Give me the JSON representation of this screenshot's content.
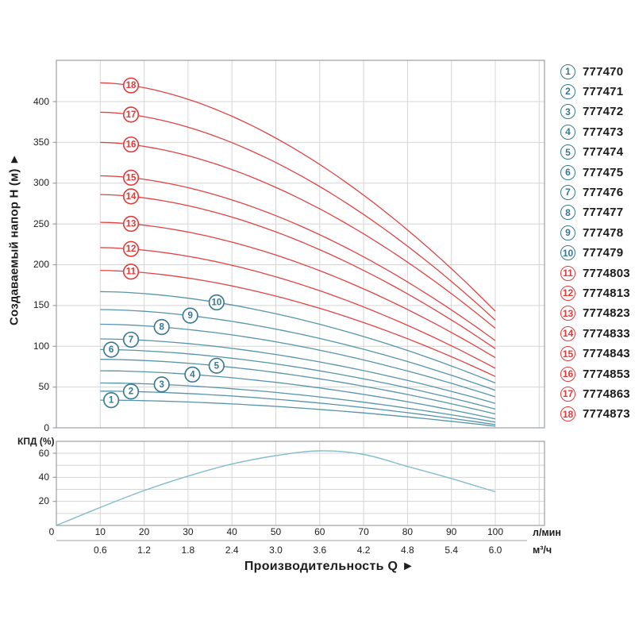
{
  "labels": {
    "y_title": "Создаваемый напор Н (м) ►",
    "x_title": "Производительность Q ►",
    "eff_label": "КПД (%)",
    "unit_lpm": "л/мин",
    "unit_m3h": "м³/ч"
  },
  "colors": {
    "red_curve": "#e04343",
    "red_label": "#e03a3a",
    "teal_curve": "#5694aa",
    "teal_label": "#35788f",
    "eff_curve": "#85bccb",
    "grid": "#d5d5d5",
    "border": "#9b9fa3",
    "text": "#1d1d1d"
  },
  "axes": {
    "y_ticks_head_m": [
      0,
      50,
      100,
      150,
      200,
      250,
      300,
      350,
      400
    ],
    "eff_y_ticks_pct": [
      20,
      40,
      60
    ],
    "x_ticks_lpm": [
      "0",
      "10",
      "20",
      "30",
      "40",
      "50",
      "60",
      "70",
      "80",
      "90",
      "100"
    ],
    "x_ticks_m3h": [
      "0.6",
      "1.2",
      "1.8",
      "2.4",
      "3.0",
      "3.6",
      "4.2",
      "4.8",
      "5.4",
      "6.0"
    ]
  },
  "chart_data": [
    {
      "type": "line",
      "title": "Напорные характеристики насосов",
      "xlabel": "Производительность Q",
      "ylabel": "Создаваемый напор Н (м)",
      "x_units": [
        "л/мин",
        "м³/ч"
      ],
      "x_range_lpm": [
        0,
        111
      ],
      "y_range_m": [
        0,
        450
      ],
      "grid": true,
      "legend_position": "right-outside",
      "curve_model": "H(q) = H0 - (H0 - He) * ((q - 10) / 90)^1.75, for q = 10..100 л/мин",
      "series": [
        {
          "id": 1,
          "model": "777470",
          "group": "teal",
          "H0": 34,
          "He": 2,
          "label_q": 12.5
        },
        {
          "id": 2,
          "model": "777471",
          "group": "teal",
          "H0": 45,
          "He": 4,
          "label_q": 17
        },
        {
          "id": 3,
          "model": "777472",
          "group": "teal",
          "H0": 55,
          "He": 7,
          "label_q": 24
        },
        {
          "id": 4,
          "model": "777473",
          "group": "teal",
          "H0": 70,
          "He": 11,
          "label_q": 31
        },
        {
          "id": 5,
          "model": "777474",
          "group": "teal",
          "H0": 84,
          "He": 17,
          "label_q": 36.5
        },
        {
          "id": 6,
          "model": "777475",
          "group": "teal",
          "H0": 96,
          "He": 23,
          "label_q": 12.5
        },
        {
          "id": 7,
          "model": "777476",
          "group": "teal",
          "H0": 109,
          "He": 30,
          "label_q": 17
        },
        {
          "id": 8,
          "model": "777477",
          "group": "teal",
          "H0": 127,
          "He": 38,
          "label_q": 24
        },
        {
          "id": 9,
          "model": "777478",
          "group": "teal",
          "H0": 145,
          "He": 46,
          "label_q": 30.5
        },
        {
          "id": 10,
          "model": "777479",
          "group": "teal",
          "H0": 167,
          "He": 55,
          "label_q": 36.5
        },
        {
          "id": 11,
          "model": "7774803",
          "group": "red",
          "H0": 193,
          "He": 63,
          "label_q": 17
        },
        {
          "id": 12,
          "model": "7774813",
          "group": "red",
          "H0": 221,
          "He": 73,
          "label_q": 17
        },
        {
          "id": 13,
          "model": "7774823",
          "group": "red",
          "H0": 252,
          "He": 86,
          "label_q": 17
        },
        {
          "id": 14,
          "model": "7774833",
          "group": "red",
          "H0": 286,
          "He": 97,
          "label_q": 17
        },
        {
          "id": 15,
          "model": "7774843",
          "group": "red",
          "H0": 309,
          "He": 107,
          "label_q": 17
        },
        {
          "id": 16,
          "model": "7774853",
          "group": "red",
          "H0": 350,
          "He": 122,
          "label_q": 17
        },
        {
          "id": 17,
          "model": "7774863",
          "group": "red",
          "H0": 387,
          "He": 132,
          "label_q": 17
        },
        {
          "id": 18,
          "model": "7774873",
          "group": "red",
          "H0": 423,
          "He": 143,
          "label_q": 17
        }
      ]
    },
    {
      "type": "line",
      "title": "Кривая КПД",
      "ylabel": "КПД (%)",
      "y_range": [
        0,
        70
      ],
      "y_ticks": [
        20,
        40,
        60
      ],
      "grid": true,
      "points_q_lpm_vs_eff_pct": [
        [
          0,
          0
        ],
        [
          10,
          15
        ],
        [
          20,
          29
        ],
        [
          30,
          41
        ],
        [
          40,
          51
        ],
        [
          50,
          58
        ],
        [
          60,
          62
        ],
        [
          70,
          59
        ],
        [
          80,
          49
        ],
        [
          90,
          39
        ],
        [
          100,
          28
        ]
      ]
    }
  ]
}
